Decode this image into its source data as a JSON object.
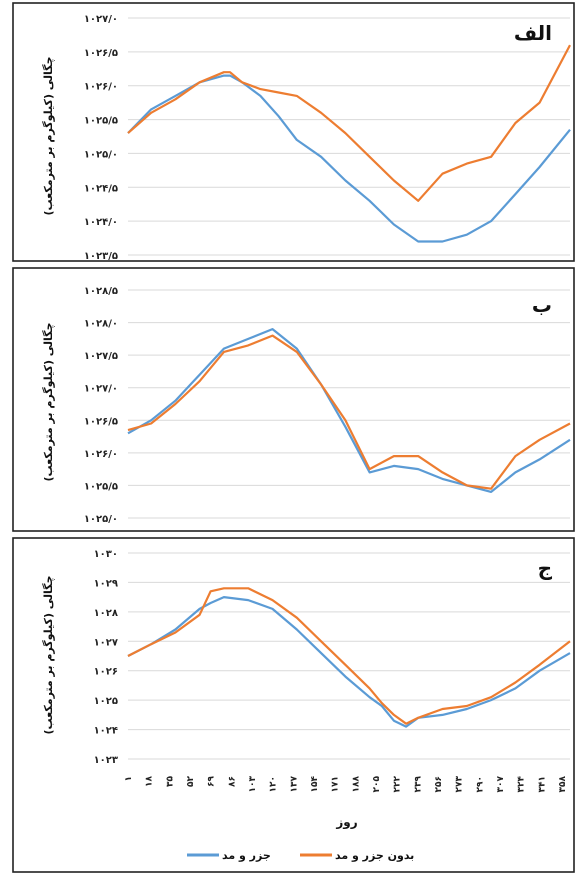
{
  "colors": {
    "blue": "#5b9bd5",
    "orange": "#ed7d31"
  },
  "legend": [
    {
      "name": "جزر و مد",
      "color": "#5b9bd5"
    },
    {
      "name": "بدون جزر و مد",
      "color": "#ed7d31"
    }
  ],
  "x_axis": {
    "label": "روز",
    "ticks": [
      "۱",
      "۱۸",
      "۳۵",
      "۵۲",
      "۶۹",
      "۸۶",
      "۱۰۳",
      "۱۲۰",
      "۱۳۷",
      "۱۵۴",
      "۱۷۱",
      "۱۸۸",
      "۲۰۵",
      "۲۲۲",
      "۲۳۹",
      "۲۵۶",
      "۲۷۳",
      "۲۹۰",
      "۳۰۷",
      "۳۲۴",
      "۳۴۱",
      "۳۵۸"
    ]
  },
  "chart_data": [
    {
      "panel_label": "الف",
      "type": "line",
      "ylabel": "چگالی (کیلوگرم بر مترمکعب)",
      "ylim": [
        1023.5,
        1027.0
      ],
      "ytick_labels": [
        "۱۰۲۷/۰",
        "۱۰۲۶/۵",
        "۱۰۲۶/۰",
        "۱۰۲۵/۵",
        "۱۰۲۵/۰",
        "۱۰۲۴/۵",
        "۱۰۲۴/۰",
        "۱۰۲۳/۵"
      ],
      "x": [
        1,
        20,
        40,
        60,
        80,
        85,
        95,
        110,
        125,
        140,
        160,
        180,
        200,
        220,
        240,
        260,
        280,
        300,
        320,
        340,
        365
      ],
      "series": [
        {
          "name": "جزر و مد",
          "values": [
            1025.3,
            1025.65,
            1025.85,
            1026.05,
            1026.15,
            1026.15,
            1026.05,
            1025.85,
            1025.55,
            1025.2,
            1024.95,
            1024.6,
            1024.3,
            1023.95,
            1023.7,
            1023.7,
            1023.8,
            1024.0,
            1024.4,
            1024.8,
            1025.35
          ]
        },
        {
          "name": "بدون جزر و مد",
          "values": [
            1025.3,
            1025.6,
            1025.8,
            1026.05,
            1026.2,
            1026.2,
            1026.05,
            1025.95,
            1025.9,
            1025.85,
            1025.6,
            1025.3,
            1024.95,
            1024.6,
            1024.3,
            1024.7,
            1024.85,
            1024.95,
            1025.45,
            1025.75,
            1026.6
          ]
        }
      ]
    },
    {
      "panel_label": "ب",
      "type": "line",
      "ylabel": "چگالی (کیلوگرم بر مترمکعب)",
      "ylim": [
        1025.0,
        1028.5
      ],
      "ytick_labels": [
        "۱۰۲۸/۵",
        "۱۰۲۸/۰",
        "۱۰۲۷/۵",
        "۱۰۲۷/۰",
        "۱۰۲۶/۵",
        "۱۰۲۶/۰",
        "۱۰۲۵/۵",
        "۱۰۲۵/۰"
      ],
      "x": [
        1,
        20,
        40,
        60,
        80,
        100,
        120,
        140,
        160,
        180,
        200,
        220,
        240,
        260,
        280,
        300,
        320,
        340,
        365
      ],
      "series": [
        {
          "name": "جزر و مد",
          "values": [
            1026.3,
            1026.5,
            1026.8,
            1027.2,
            1027.6,
            1027.75,
            1027.9,
            1027.6,
            1027.05,
            1026.4,
            1025.7,
            1025.8,
            1025.75,
            1025.6,
            1025.5,
            1025.4,
            1025.7,
            1025.9,
            1026.2
          ]
        },
        {
          "name": "بدون جزر و مد",
          "values": [
            1026.35,
            1026.45,
            1026.75,
            1027.1,
            1027.55,
            1027.65,
            1027.8,
            1027.55,
            1027.05,
            1026.5,
            1025.75,
            1025.95,
            1025.95,
            1025.7,
            1025.5,
            1025.45,
            1025.95,
            1026.2,
            1026.45
          ]
        }
      ]
    },
    {
      "panel_label": "ج",
      "type": "line",
      "ylabel": "چگالی (کیلوگرم بر مترمکعب)",
      "ylim": [
        1023,
        1030
      ],
      "ytick_labels": [
        "۱۰۳۰",
        "۱۰۲۹",
        "۱۰۲۸",
        "۱۰۲۷",
        "۱۰۲۶",
        "۱۰۲۵",
        "۱۰۲۴",
        "۱۰۲۳"
      ],
      "x": [
        1,
        20,
        40,
        60,
        69,
        80,
        100,
        120,
        140,
        160,
        180,
        200,
        210,
        220,
        230,
        240,
        260,
        280,
        300,
        320,
        340,
        365
      ],
      "series": [
        {
          "name": "جزر و مد",
          "values": [
            1026.5,
            1026.9,
            1027.4,
            1028.1,
            1028.3,
            1028.5,
            1028.4,
            1028.1,
            1027.4,
            1026.6,
            1025.8,
            1025.1,
            1024.8,
            1024.3,
            1024.1,
            1024.4,
            1024.5,
            1024.7,
            1025.0,
            1025.4,
            1026.0,
            1026.6
          ]
        },
        {
          "name": "بدون جزر و مد",
          "values": [
            1026.5,
            1026.9,
            1027.3,
            1027.9,
            1028.7,
            1028.8,
            1028.8,
            1028.4,
            1027.8,
            1027.0,
            1026.2,
            1025.4,
            1024.9,
            1024.5,
            1024.2,
            1024.4,
            1024.7,
            1024.8,
            1025.1,
            1025.6,
            1026.2,
            1027.0
          ]
        }
      ]
    }
  ]
}
